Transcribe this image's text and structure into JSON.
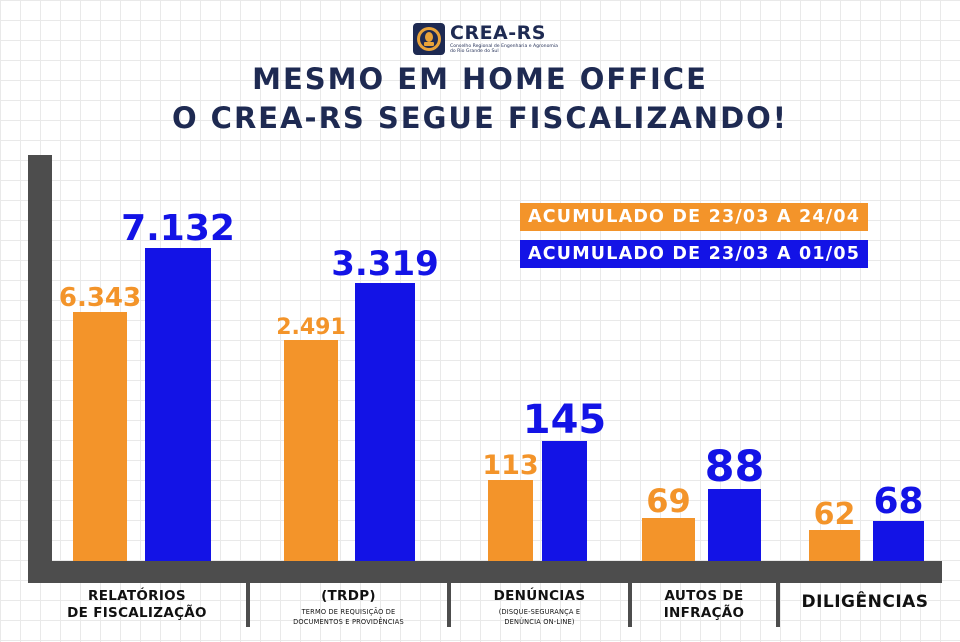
{
  "logo": {
    "name": "CREA-RS",
    "subtitle": "Conselho Regional de Engenharia e Agronomia do Rio Grande do Sul"
  },
  "title": {
    "line1": "MESMO EM HOME OFFICE",
    "line2": "O CREA-RS SEGUE FISCALIZANDO!"
  },
  "colors": {
    "orange": "#f3942a",
    "blue": "#1313e6",
    "navy": "#1e2a52",
    "axis": "#4d4d4d"
  },
  "chart_data": {
    "type": "bar",
    "grouped": true,
    "categories": [
      "RELATÓRIOS DE FISCALIZAÇÃO",
      "(TRDP)",
      "DENÚNCIAS",
      "AUTOS DE INFRAÇÃO",
      "DILIGÊNCIAS"
    ],
    "series": [
      {
        "name": "ACUMULADO DE 23/03 A 24/04",
        "color": "#f3942a",
        "values": [
          6343,
          2491,
          113,
          69,
          62
        ],
        "labels": [
          "6.343",
          "2.491",
          "113",
          "69",
          "62"
        ]
      },
      {
        "name": "ACUMULADO DE 23/03 A 01/05",
        "color": "#1313e6",
        "values": [
          7132,
          3319,
          145,
          88,
          68
        ],
        "labels": [
          "7.132",
          "3.319",
          "145",
          "88",
          "68"
        ]
      }
    ],
    "legend_position": "top-right",
    "grid": false
  },
  "categories_display": [
    {
      "main": "RELATÓRIOS\nDE FISCALIZAÇÃO",
      "sub": ""
    },
    {
      "main": "(TRDP)",
      "sub": "TERMO DE REQUISIÇÃO DE\nDOCUMENTOS E PROVIDÊNCIAS"
    },
    {
      "main": "DENÚNCIAS",
      "sub": "(DISQUE-SEGURANÇA E\nDENÚNCIA ON-LINE)"
    },
    {
      "main": "AUTOS DE\nINFRAÇÃO",
      "sub": ""
    },
    {
      "main": "DILIGÊNCIAS",
      "sub": ""
    }
  ]
}
